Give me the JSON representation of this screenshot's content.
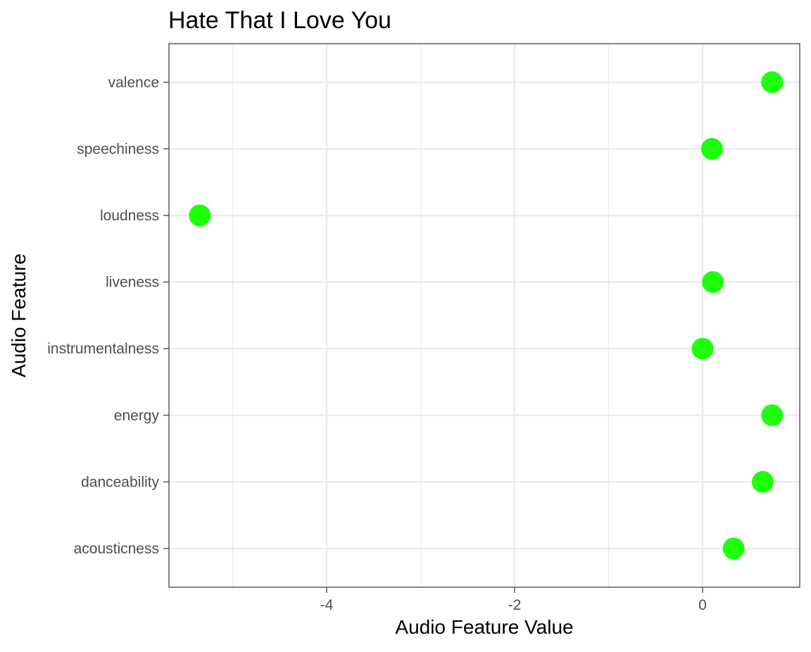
{
  "chart_data": {
    "type": "scatter",
    "title": "Hate That I Love You",
    "xlabel": "Audio Feature Value",
    "ylabel": "Audio Feature",
    "xlim": [
      -5.65,
      1.04
    ],
    "x_ticks": [
      -4,
      -2,
      0
    ],
    "x_tick_labels": [
      "-4",
      "-2",
      "0"
    ],
    "x_minor_gridlines": [
      -5,
      -3,
      -1,
      1
    ],
    "categories": [
      "acousticness",
      "danceability",
      "energy",
      "instrumentalness",
      "liveness",
      "loudness",
      "speechiness",
      "valence"
    ],
    "values": [
      0.33,
      0.64,
      0.74,
      0.0,
      0.11,
      -5.35,
      0.1,
      0.74
    ],
    "point_color": "#1eff0b",
    "grid": true,
    "legend": "none"
  }
}
